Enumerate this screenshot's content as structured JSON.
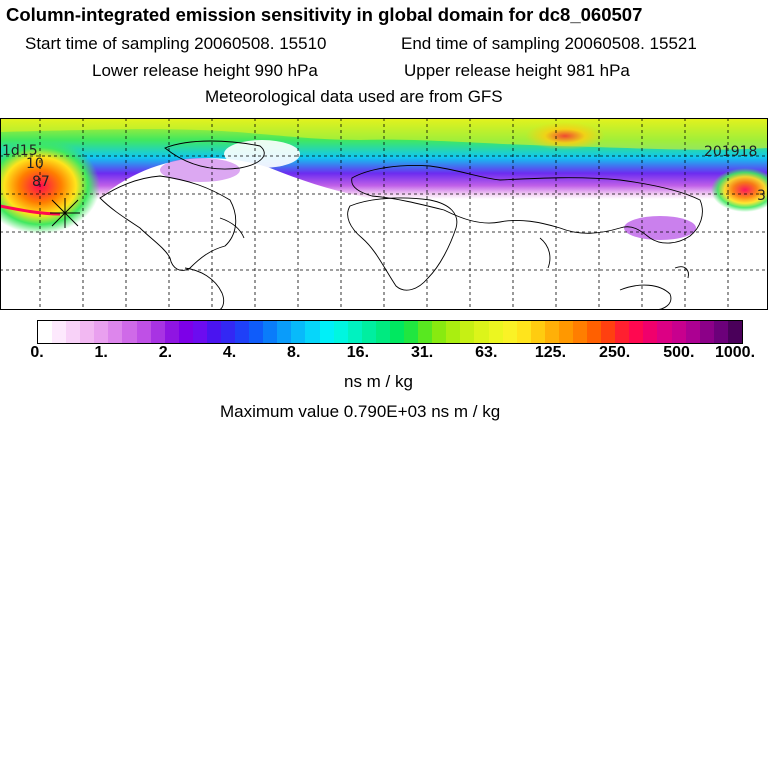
{
  "header": {
    "title": "Column-integrated emission sensitivity in global domain for dc8_060507",
    "start_time": "Start time of sampling 20060508. 15510",
    "end_time": "End time of sampling 20060508. 15521",
    "lower_height": "Lower release height  990 hPa",
    "upper_height": "Upper release height  981 hPa",
    "met_data": "Meteorological data used are from GFS"
  },
  "map": {
    "contour_labels": [
      "1d15",
      "10",
      "87",
      "201918",
      "3"
    ]
  },
  "colorbar": {
    "tick_labels": [
      "0.",
      "1.",
      "2.",
      "4.",
      "8.",
      "16.",
      "31.",
      "63.",
      "125.",
      "250.",
      "500.",
      "1000."
    ],
    "colors": [
      "#ffffff",
      "#fde9fd",
      "#f8d2f8",
      "#f2b8f2",
      "#e9a0ef",
      "#dd86ec",
      "#cf6ae8",
      "#bf50e6",
      "#a833e3",
      "#8f15e2",
      "#7d00e8",
      "#6c0cf0",
      "#4a14f0",
      "#3328f4",
      "#1f40f8",
      "#0f5cfa",
      "#0a7cfa",
      "#0a9cfa",
      "#08bafa",
      "#06d6fa",
      "#00f0f8",
      "#00f6e0",
      "#00f2c0",
      "#00eea0",
      "#00ea80",
      "#00e860",
      "#20e640",
      "#58e820",
      "#88ea10",
      "#aaee10",
      "#c6f014",
      "#dcf41a",
      "#ecf620",
      "#faf226",
      "#ffe41c",
      "#ffcc10",
      "#ffb008",
      "#ff9800",
      "#ff7e00",
      "#ff6000",
      "#ff4010",
      "#ff2030",
      "#ff0850",
      "#f0006c",
      "#dc0084",
      "#c8008e",
      "#ac0092",
      "#8c0088",
      "#6c007a",
      "#4a005a"
    ],
    "units": "ns m / kg",
    "max_value": "Maximum value  0.790E+03 ns m / kg"
  }
}
